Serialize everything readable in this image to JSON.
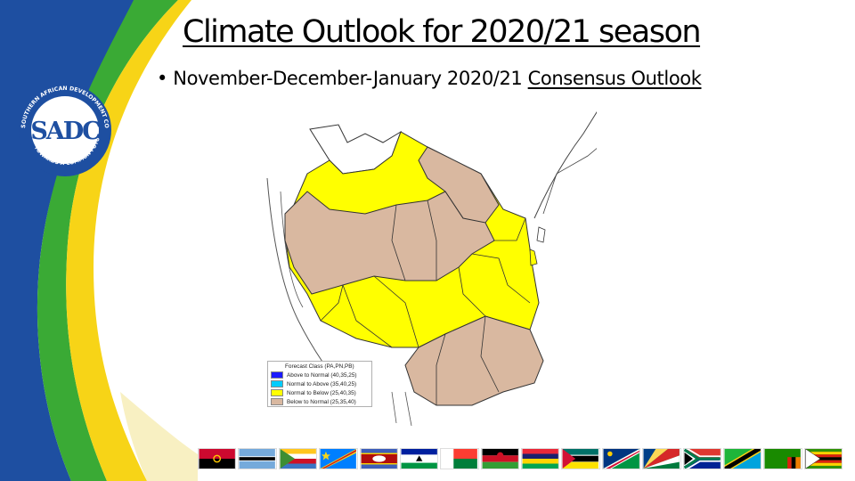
{
  "slide": {
    "title": "Climate Outlook for 2020/21 season",
    "bullet_prefix": "November-December-January 2020/21 ",
    "bullet_underlined": "Consensus Outlook"
  },
  "logo": {
    "ring_text": "SOUTHERN AFRICAN DEVELOPMENT COMMUNITY",
    "ring_bottom_text": "TOWARDS A COMMON FUTURE",
    "center_text": "SADC"
  },
  "legend": {
    "title": "Forecast Class (PA,PN,PB)",
    "items": [
      {
        "label": "Above to Normal (40,35,25)",
        "color": "#1a1aff"
      },
      {
        "label": "Normal to Above (35,40,25)",
        "color": "#00ccff"
      },
      {
        "label": "Normal to Below (25,40,35)",
        "color": "#ffff00"
      },
      {
        "label": "Below to Normal (25,35,40)",
        "color": "#d9b8a0"
      }
    ]
  },
  "colors": {
    "sadc_blue": "#1e4fa1",
    "sadc_green": "#3aaa35",
    "sadc_yellow": "#f7d417",
    "yellow_zone": "#ffff00",
    "brown_zone": "#d9b8a0"
  },
  "flags": [
    "angola-flag",
    "botswana-flag",
    "comoros-flag",
    "drc-flag",
    "eswatini-flag",
    "lesotho-flag",
    "madagascar-flag",
    "malawi-flag",
    "mauritius-flag",
    "mozambique-flag",
    "namibia-flag",
    "seychelles-flag",
    "south-africa-flag",
    "tanzania-flag",
    "zambia-flag",
    "zimbabwe-flag"
  ]
}
